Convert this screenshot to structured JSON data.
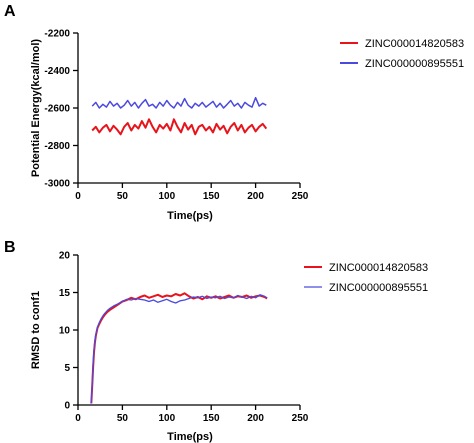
{
  "panels": [
    {
      "letter": "A"
    },
    {
      "letter": "B"
    }
  ],
  "chart_data": [
    {
      "type": "line",
      "xlabel": "Time(ps)",
      "ylabel": "Potential Energy(kcal/mol)",
      "xlim": [
        0,
        250
      ],
      "ylim": [
        -3000,
        -2200
      ],
      "xticks": [
        0,
        50,
        100,
        150,
        200,
        250
      ],
      "yticks": [
        -3000,
        -2800,
        -2600,
        -2400,
        -2200
      ],
      "grid": false,
      "legend_position": "right",
      "series": [
        {
          "name": "ZINC000014820583",
          "color": "#e8141c",
          "x": [
            16,
            20,
            24,
            28,
            32,
            36,
            40,
            44,
            48,
            52,
            56,
            60,
            64,
            68,
            72,
            76,
            80,
            84,
            88,
            92,
            96,
            100,
            104,
            108,
            112,
            116,
            120,
            124,
            128,
            132,
            136,
            140,
            144,
            148,
            152,
            156,
            160,
            164,
            168,
            172,
            176,
            180,
            184,
            188,
            192,
            196,
            200,
            204,
            208,
            212
          ],
          "y": [
            -2720,
            -2700,
            -2730,
            -2705,
            -2690,
            -2725,
            -2695,
            -2715,
            -2740,
            -2700,
            -2680,
            -2720,
            -2690,
            -2710,
            -2670,
            -2705,
            -2660,
            -2700,
            -2730,
            -2690,
            -2710,
            -2685,
            -2720,
            -2660,
            -2700,
            -2730,
            -2680,
            -2715,
            -2690,
            -2740,
            -2700,
            -2690,
            -2720,
            -2700,
            -2730,
            -2685,
            -2715,
            -2695,
            -2735,
            -2700,
            -2680,
            -2720,
            -2690,
            -2730,
            -2705,
            -2690,
            -2725,
            -2700,
            -2685,
            -2710
          ]
        },
        {
          "name": "ZINC000000895551",
          "color": "#4a4adf",
          "x": [
            16,
            20,
            24,
            28,
            32,
            36,
            40,
            44,
            48,
            52,
            56,
            60,
            64,
            68,
            72,
            76,
            80,
            84,
            88,
            92,
            96,
            100,
            104,
            108,
            112,
            116,
            120,
            124,
            128,
            132,
            136,
            140,
            144,
            148,
            152,
            156,
            160,
            164,
            168,
            172,
            176,
            180,
            184,
            188,
            192,
            196,
            200,
            204,
            208,
            212
          ],
          "y": [
            -2590,
            -2570,
            -2600,
            -2580,
            -2595,
            -2565,
            -2590,
            -2575,
            -2600,
            -2585,
            -2560,
            -2590,
            -2570,
            -2600,
            -2575,
            -2555,
            -2590,
            -2580,
            -2600,
            -2570,
            -2590,
            -2560,
            -2585,
            -2600,
            -2570,
            -2590,
            -2550,
            -2585,
            -2600,
            -2575,
            -2590,
            -2570,
            -2595,
            -2580,
            -2565,
            -2595,
            -2575,
            -2600,
            -2580,
            -2560,
            -2590,
            -2575,
            -2600,
            -2570,
            -2585,
            -2595,
            -2545,
            -2590,
            -2575,
            -2585
          ]
        }
      ]
    },
    {
      "type": "line",
      "xlabel": "Time(ps)",
      "ylabel": "RMSD to conf1",
      "xlim": [
        0,
        250
      ],
      "ylim": [
        0,
        20
      ],
      "xticks": [
        0,
        50,
        100,
        150,
        200,
        250
      ],
      "yticks": [
        0,
        5,
        10,
        15,
        20
      ],
      "grid": false,
      "legend_position": "right",
      "series": [
        {
          "name": "ZINC000014820583",
          "color": "#e8141c",
          "x": [
            15,
            16,
            17,
            18,
            19,
            20,
            22,
            24,
            26,
            28,
            30,
            33,
            36,
            40,
            45,
            50,
            55,
            60,
            65,
            70,
            75,
            80,
            85,
            90,
            95,
            100,
            105,
            110,
            115,
            120,
            125,
            130,
            135,
            140,
            145,
            150,
            155,
            160,
            165,
            170,
            175,
            180,
            185,
            190,
            195,
            200,
            205,
            210,
            213
          ],
          "y": [
            0.2,
            2.5,
            5.0,
            7.0,
            8.3,
            9.2,
            10.3,
            10.8,
            11.3,
            11.7,
            12.0,
            12.4,
            12.7,
            13.0,
            13.4,
            13.8,
            14.0,
            14.3,
            14.1,
            14.4,
            14.6,
            14.3,
            14.5,
            14.7,
            14.4,
            14.6,
            14.5,
            14.8,
            14.6,
            14.9,
            14.5,
            14.2,
            14.4,
            14.1,
            14.5,
            14.3,
            14.5,
            14.2,
            14.4,
            14.6,
            14.3,
            14.5,
            14.4,
            14.6,
            14.3,
            14.5,
            14.6,
            14.4,
            14.2
          ]
        },
        {
          "name": "ZINC000000895551",
          "color": "#4a4adf",
          "x": [
            15,
            16,
            17,
            18,
            19,
            20,
            22,
            24,
            26,
            28,
            30,
            33,
            36,
            40,
            45,
            50,
            55,
            60,
            65,
            70,
            75,
            80,
            85,
            90,
            95,
            100,
            105,
            110,
            115,
            120,
            125,
            130,
            135,
            140,
            145,
            150,
            155,
            160,
            165,
            170,
            175,
            180,
            185,
            190,
            195,
            200,
            205,
            210,
            213
          ],
          "y": [
            0.2,
            2.8,
            5.5,
            7.4,
            8.6,
            9.4,
            10.4,
            11.0,
            11.5,
            11.9,
            12.2,
            12.6,
            12.9,
            13.2,
            13.5,
            13.8,
            14.1,
            14.0,
            14.2,
            14.1,
            14.0,
            13.8,
            14.0,
            13.7,
            13.9,
            14.1,
            13.8,
            13.6,
            13.9,
            14.0,
            14.2,
            14.4,
            14.3,
            14.5,
            14.2,
            14.4,
            14.3,
            14.5,
            14.2,
            14.4,
            14.3,
            14.6,
            14.4,
            14.2,
            14.5,
            14.3,
            14.7,
            14.5,
            14.3
          ]
        }
      ]
    }
  ]
}
